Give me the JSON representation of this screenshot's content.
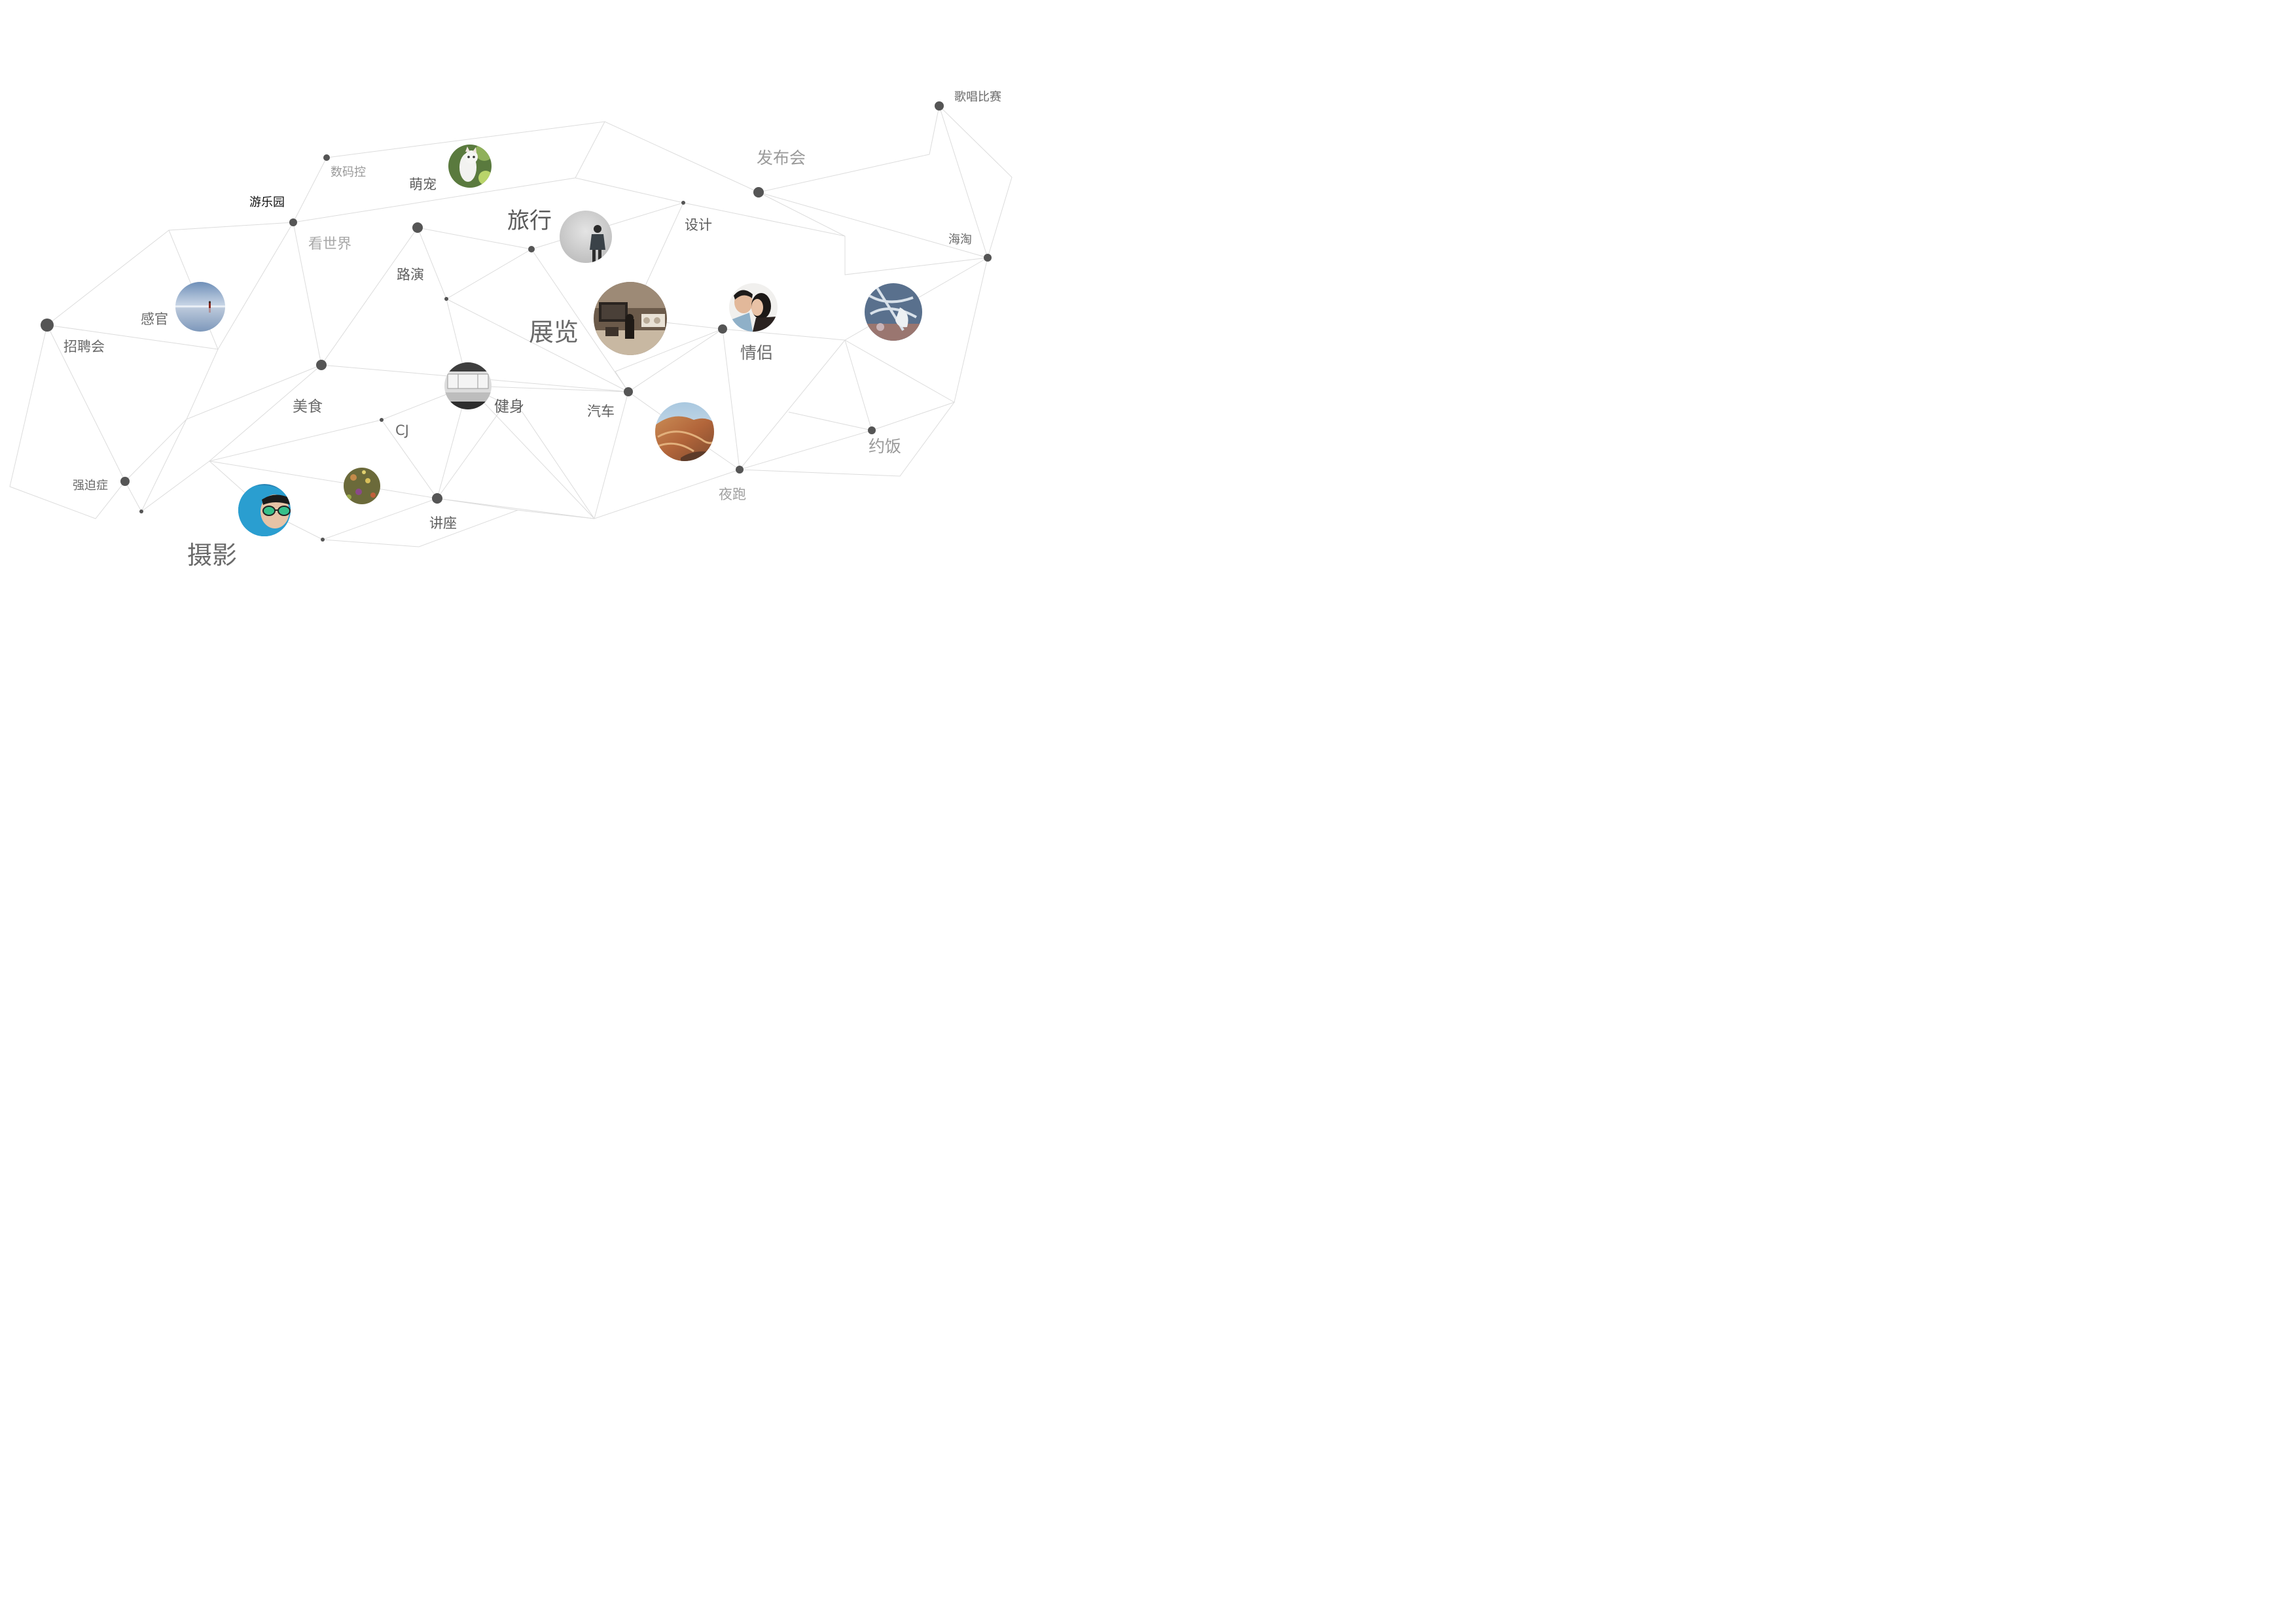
{
  "colors": {
    "background": "#ffffff",
    "edge": "#dcdcdc",
    "node": "#555555",
    "label_dark": "#5e5e5e",
    "label_light": "#9a9a9a",
    "label_black": "#111111"
  },
  "labels": {
    "ge_chang_bi_sai": "歌唱比赛",
    "fa_bu_hui": "发布会",
    "shu_ma_kong": "数码控",
    "meng_chong": "萌宠",
    "you_le_yuan": "游乐园",
    "kan_shi_jie": "看世界",
    "lv_xing": "旅行",
    "she_ji": "设计",
    "hai_tao": "海淘",
    "lu_yan": "路演",
    "gan_guan": "感官",
    "zhao_pin_hui": "招聘会",
    "zhan_lan": "展览",
    "qing_lv": "情侣",
    "mei_shi": "美食",
    "jian_shen": "健身",
    "qi_che": "汽车",
    "cj": "CJ",
    "yue_fan": "约饭",
    "qiang_po_zheng": "强迫症",
    "ye_pao": "夜跑",
    "jiang_zuo": "讲座",
    "she_ying": "摄影"
  },
  "photos": [
    {
      "key": "pet",
      "subject": "white-kitten-photo"
    },
    {
      "key": "travel",
      "subject": "man-facing-wall-photo"
    },
    {
      "key": "senses",
      "subject": "salt-flat-reflection-photo"
    },
    {
      "key": "exhibition",
      "subject": "gallery-interior-photo"
    },
    {
      "key": "couple",
      "subject": "kissing-couple-photo"
    },
    {
      "key": "shopping",
      "subject": "frosted-branches-photo"
    },
    {
      "key": "fitness",
      "subject": "kitchen-counter-photo"
    },
    {
      "key": "car",
      "subject": "painted-hills-photo"
    },
    {
      "key": "flowers",
      "subject": "wildflowers-photo"
    },
    {
      "key": "photography",
      "subject": "woman-in-sunglasses-photo"
    }
  ]
}
